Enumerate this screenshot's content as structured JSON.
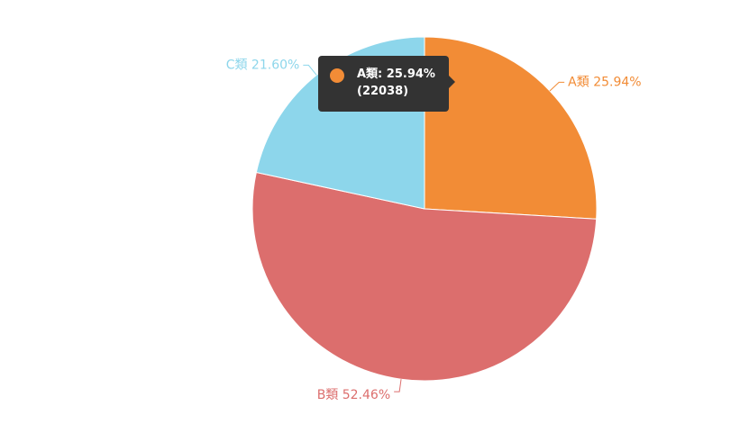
{
  "chart_data": {
    "type": "pie",
    "title": "",
    "slices": [
      {
        "name": "A類",
        "percent": 25.94,
        "label": "A類 25.94%",
        "color": "#f28c36"
      },
      {
        "name": "B類",
        "percent": 52.46,
        "label": "B類 52.46%",
        "color": "#dc6e6d"
      },
      {
        "name": "C類",
        "percent": 21.6,
        "label": "C類 21.60%",
        "color": "#8dd6eb"
      }
    ],
    "start_angle_deg": 0,
    "direction": "clockwise",
    "selected_slice": "A類"
  },
  "tooltip": {
    "line1": "A類: 25.94%",
    "line2": "(22038)",
    "dot_color": "#f28c36"
  }
}
